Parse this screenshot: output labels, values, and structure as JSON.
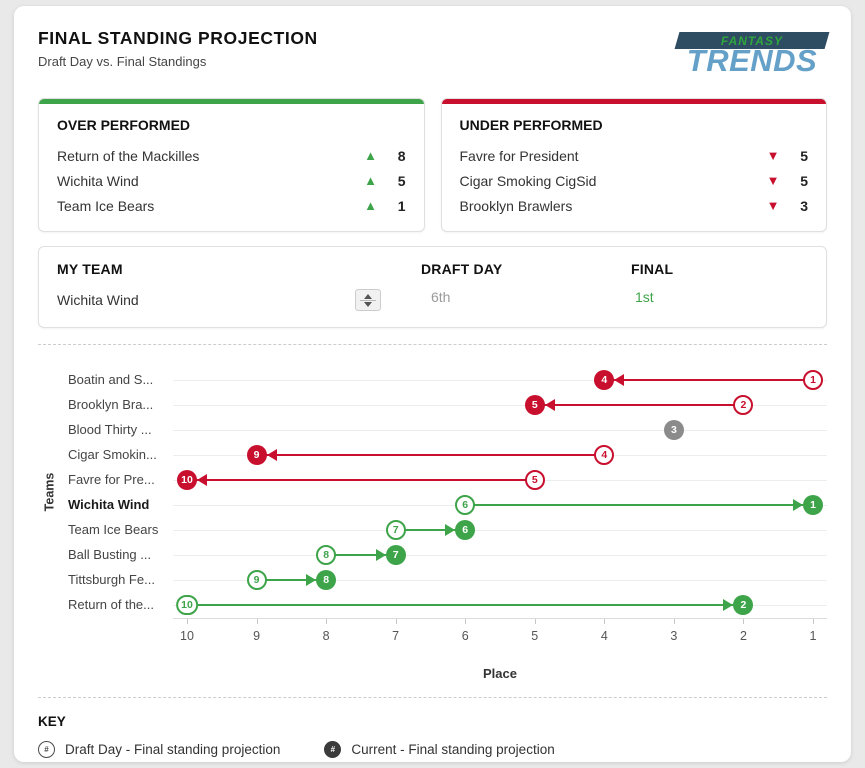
{
  "header": {
    "title": "FINAL STANDING PROJECTION",
    "subtitle": "Draft Day vs. Final Standings",
    "logo": {
      "top": "FANTASY",
      "bottom": "TRENDS"
    }
  },
  "icons": {
    "up_triangle": "▲",
    "down_triangle": "▼"
  },
  "colors": {
    "green": "#3ea44a",
    "red": "#c8102e",
    "gray": "#8b8b8b",
    "logo_navy": "#2e4d63",
    "logo_green": "#2fa63c",
    "logo_blue": "#64a0c8"
  },
  "over_performed": {
    "title": "OVER PERFORMED",
    "rows": [
      {
        "team": "Return of the Mackilles",
        "delta": 8
      },
      {
        "team": "Wichita Wind",
        "delta": 5
      },
      {
        "team": "Team Ice Bears",
        "delta": 1
      }
    ]
  },
  "under_performed": {
    "title": "UNDER PERFORMED",
    "rows": [
      {
        "team": "Favre for President",
        "delta": 5
      },
      {
        "team": "Cigar Smoking CigSid",
        "delta": 5
      },
      {
        "team": "Brooklyn Brawlers",
        "delta": 3
      }
    ]
  },
  "my_team": {
    "label": "MY TEAM",
    "selected": "Wichita Wind",
    "draft_day_label": "DRAFT DAY",
    "draft_day_value": "6th",
    "final_label": "FINAL",
    "final_value": "1st"
  },
  "chart_data": {
    "type": "dumbbell-arrow",
    "xlabel": "Place",
    "ylabel": "Teams",
    "x_ticks": [
      10,
      9,
      8,
      7,
      6,
      5,
      4,
      3,
      2,
      1
    ],
    "x_range_note": "place 10 (worst) at left, place 1 (best) at right",
    "colors": {
      "better": "#3ea44a",
      "worse": "#c8102e",
      "same": "#8b8b8b"
    },
    "rows": [
      {
        "team": "Boatin and S...",
        "draft": 1,
        "final": 4,
        "direction": "worse"
      },
      {
        "team": "Brooklyn Bra...",
        "draft": 2,
        "final": 5,
        "direction": "worse"
      },
      {
        "team": "Blood Thirty ...",
        "draft": 3,
        "final": 3,
        "direction": "same"
      },
      {
        "team": "Cigar Smokin...",
        "draft": 4,
        "final": 9,
        "direction": "worse"
      },
      {
        "team": "Favre for Pre...",
        "draft": 5,
        "final": 10,
        "direction": "worse"
      },
      {
        "team": "Wichita Wind",
        "draft": 6,
        "final": 1,
        "direction": "better",
        "highlight": true
      },
      {
        "team": "Team Ice Bears",
        "draft": 7,
        "final": 6,
        "direction": "better"
      },
      {
        "team": "Ball Busting ...",
        "draft": 8,
        "final": 7,
        "direction": "better"
      },
      {
        "team": "Tittsburgh Fe...",
        "draft": 9,
        "final": 8,
        "direction": "better"
      },
      {
        "team": "Return of the...",
        "draft": 10,
        "final": 2,
        "direction": "better"
      }
    ]
  },
  "key": {
    "title": "KEY",
    "items": [
      {
        "symbol": "#",
        "style": "open",
        "label": "Draft Day - Final standing projection"
      },
      {
        "symbol": "#",
        "style": "filled",
        "label": "Current - Final standing projection"
      }
    ]
  }
}
